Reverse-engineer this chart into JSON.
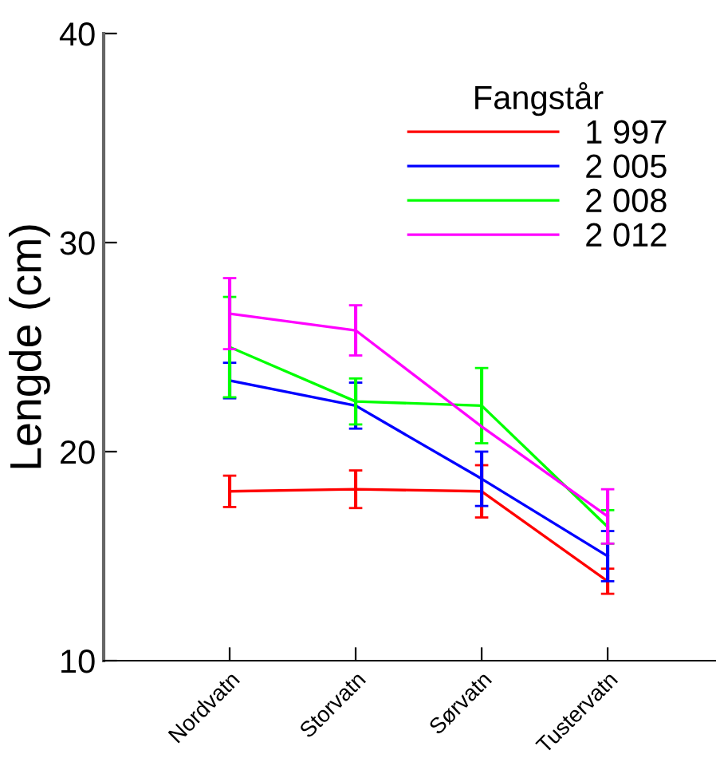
{
  "chart_data": {
    "type": "line",
    "ylabel": "Lengde (cm)",
    "legend_title": "Fangstår",
    "categories": [
      "Nordvatn",
      "Storvatn",
      "Sørvatn",
      "Tustervatn"
    ],
    "series": [
      {
        "name": "1 997",
        "color": "#ff0000",
        "values": [
          18.1,
          18.2,
          18.1,
          13.8
        ],
        "errors": [
          0.75,
          0.9,
          1.25,
          0.6
        ]
      },
      {
        "name": "2 005",
        "color": "#0000ff",
        "values": [
          23.4,
          22.2,
          18.7,
          15.0
        ],
        "errors": [
          0.85,
          1.1,
          1.3,
          1.2
        ]
      },
      {
        "name": "2 008",
        "color": "#00ff00",
        "values": [
          25.0,
          22.4,
          22.2,
          16.4
        ],
        "errors": [
          2.4,
          1.1,
          1.8,
          0.8
        ]
      },
      {
        "name": "2 012",
        "color": "#ff00ff",
        "values": [
          26.6,
          25.8,
          21.2,
          16.9
        ],
        "errors": [
          1.7,
          1.2,
          null,
          1.3
        ]
      }
    ],
    "ylim": [
      10,
      40
    ],
    "yticks": [
      10,
      20,
      30,
      40
    ],
    "grid": false,
    "legend": "top right",
    "marker": "none",
    "line_style": "solid"
  }
}
